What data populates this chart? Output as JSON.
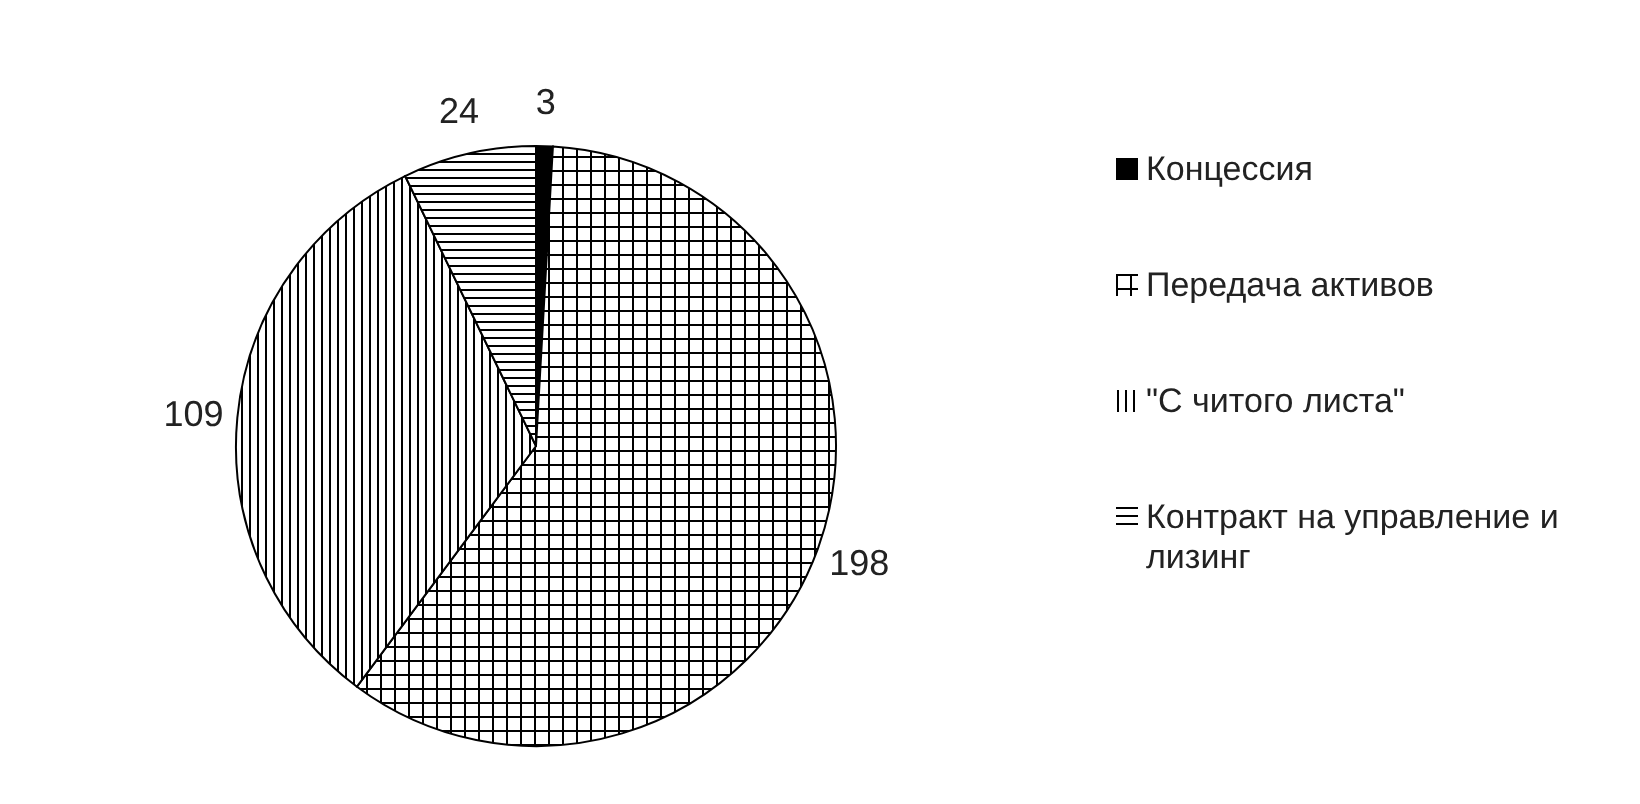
{
  "chart_data": {
    "type": "pie",
    "categories": [
      "Концессия",
      "Передача активов",
      "\"С читого листа\"",
      "Контракт на управление и лизинг"
    ],
    "values": [
      3,
      198,
      109,
      24
    ],
    "colors": [
      "#000000",
      "#000000",
      "#000000",
      "#000000"
    ],
    "data_labels": true,
    "legend": "right"
  }
}
